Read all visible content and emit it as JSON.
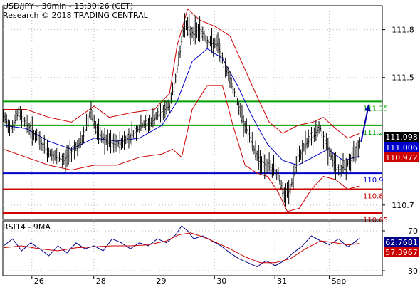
{
  "header": {
    "line1": "USD/JPY - 30min - 13:30:26 (CET)",
    "line2": "Research © 2018 TRADING CENTRAL"
  },
  "chart_data": [
    {
      "type": "ohlc",
      "instrument": "USD/JPY",
      "timeframe": "30min",
      "ylim": [
        110.61,
        111.95
      ],
      "price_ticks": [
        110.7,
        111.5,
        111.8
      ],
      "x_ticks": [
        "26",
        "28",
        "29",
        "30",
        "31",
        "Sep"
      ],
      "levels": [
        {
          "label": "111.35",
          "value": 111.35,
          "color": "#00a000",
          "role": "resistance"
        },
        {
          "label": "111.2",
          "value": 111.2,
          "color": "#00a000",
          "role": "resistance"
        },
        {
          "label": "110.9",
          "value": 110.9,
          "color": "#0000cc",
          "role": "pivot"
        },
        {
          "label": "110.8",
          "value": 110.8,
          "color": "#cc0000",
          "role": "support"
        },
        {
          "label": "110.65",
          "value": 110.65,
          "color": "#cc0000",
          "role": "support"
        }
      ],
      "price_boxes": [
        {
          "label": "111.098",
          "value": 111.098,
          "bg": "#000000",
          "fg": "#ffffff"
        },
        {
          "label": "111.006",
          "value": 111.006,
          "bg": "#0000cc",
          "fg": "#ffffff"
        },
        {
          "label": "110.972",
          "value": 110.972,
          "bg": "#cc0000",
          "fg": "#ffffff"
        }
      ],
      "close_path": [
        [
          0,
          111.25
        ],
        [
          5,
          111.18
        ],
        [
          10,
          111.28
        ],
        [
          16,
          111.2
        ],
        [
          22,
          111.12
        ],
        [
          28,
          111.05
        ],
        [
          34,
          111.0
        ],
        [
          40,
          110.98
        ],
        [
          46,
          111.05
        ],
        [
          52,
          111.1
        ],
        [
          58,
          111.3
        ],
        [
          62,
          111.15
        ],
        [
          68,
          111.1
        ],
        [
          74,
          111.08
        ],
        [
          80,
          111.1
        ],
        [
          86,
          111.15
        ],
        [
          92,
          111.2
        ],
        [
          98,
          111.22
        ],
        [
          104,
          111.28
        ],
        [
          110,
          111.32
        ],
        [
          116,
          111.6
        ],
        [
          120,
          111.85
        ],
        [
          124,
          111.78
        ],
        [
          130,
          111.8
        ],
        [
          136,
          111.72
        ],
        [
          142,
          111.7
        ],
        [
          148,
          111.55
        ],
        [
          154,
          111.38
        ],
        [
          158,
          111.25
        ],
        [
          162,
          111.15
        ],
        [
          166,
          111.05
        ],
        [
          170,
          110.98
        ],
        [
          174,
          110.95
        ],
        [
          178,
          110.93
        ],
        [
          182,
          110.9
        ],
        [
          186,
          110.75
        ],
        [
          190,
          110.8
        ],
        [
          194,
          110.95
        ],
        [
          198,
          111.05
        ],
        [
          202,
          111.1
        ],
        [
          206,
          111.15
        ],
        [
          210,
          111.18
        ],
        [
          214,
          111.08
        ],
        [
          218,
          110.98
        ],
        [
          222,
          110.92
        ],
        [
          226,
          110.94
        ],
        [
          230,
          110.98
        ],
        [
          234,
          111.05
        ],
        [
          236,
          111.098
        ]
      ],
      "sma_path": [
        [
          0,
          111.2
        ],
        [
          15,
          111.18
        ],
        [
          30,
          111.1
        ],
        [
          45,
          111.05
        ],
        [
          60,
          111.12
        ],
        [
          75,
          111.1
        ],
        [
          90,
          111.12
        ],
        [
          105,
          111.2
        ],
        [
          115,
          111.35
        ],
        [
          125,
          111.6
        ],
        [
          135,
          111.68
        ],
        [
          145,
          111.62
        ],
        [
          155,
          111.45
        ],
        [
          165,
          111.25
        ],
        [
          175,
          111.08
        ],
        [
          185,
          110.98
        ],
        [
          195,
          110.95
        ],
        [
          205,
          111.0
        ],
        [
          215,
          111.05
        ],
        [
          225,
          110.98
        ],
        [
          236,
          111.006
        ]
      ],
      "bb_upper_path": [
        [
          0,
          111.3
        ],
        [
          15,
          111.3
        ],
        [
          30,
          111.25
        ],
        [
          45,
          111.22
        ],
        [
          60,
          111.32
        ],
        [
          70,
          111.25
        ],
        [
          85,
          111.28
        ],
        [
          100,
          111.3
        ],
        [
          110,
          111.4
        ],
        [
          115,
          111.7
        ],
        [
          122,
          111.93
        ],
        [
          130,
          111.86
        ],
        [
          140,
          111.82
        ],
        [
          150,
          111.76
        ],
        [
          160,
          111.55
        ],
        [
          168,
          111.38
        ],
        [
          176,
          111.22
        ],
        [
          185,
          111.15
        ],
        [
          195,
          111.2
        ],
        [
          205,
          111.22
        ],
        [
          212,
          111.25
        ],
        [
          220,
          111.18
        ],
        [
          228,
          111.12
        ],
        [
          236,
          111.15
        ]
      ],
      "bb_lower_path": [
        [
          0,
          111.05
        ],
        [
          15,
          111.0
        ],
        [
          30,
          110.95
        ],
        [
          45,
          110.92
        ],
        [
          60,
          110.95
        ],
        [
          75,
          110.95
        ],
        [
          90,
          111.0
        ],
        [
          105,
          111.02
        ],
        [
          112,
          111.05
        ],
        [
          118,
          111.0
        ],
        [
          125,
          111.3
        ],
        [
          135,
          111.45
        ],
        [
          145,
          111.45
        ],
        [
          152,
          111.2
        ],
        [
          160,
          110.95
        ],
        [
          168,
          110.9
        ],
        [
          175,
          110.88
        ],
        [
          182,
          110.78
        ],
        [
          188,
          110.66
        ],
        [
          196,
          110.68
        ],
        [
          204,
          110.8
        ],
        [
          212,
          110.88
        ],
        [
          220,
          110.86
        ],
        [
          228,
          110.8
        ],
        [
          236,
          110.82
        ]
      ],
      "arrow_target": [
        242,
        111.33
      ]
    },
    {
      "type": "line",
      "title": "RSI14 - 9MA",
      "ylim": [
        25,
        80
      ],
      "ticks": [
        30,
        70
      ],
      "series": [
        {
          "color": "#000088",
          "values": [
            [
              0,
              55
            ],
            [
              6,
              62
            ],
            [
              12,
              50
            ],
            [
              18,
              58
            ],
            [
              24,
              52
            ],
            [
              30,
              45
            ],
            [
              36,
              55
            ],
            [
              42,
              48
            ],
            [
              48,
              58
            ],
            [
              54,
              52
            ],
            [
              60,
              55
            ],
            [
              66,
              50
            ],
            [
              72,
              62
            ],
            [
              78,
              58
            ],
            [
              84,
              52
            ],
            [
              90,
              58
            ],
            [
              96,
              55
            ],
            [
              102,
              62
            ],
            [
              108,
              58
            ],
            [
              114,
              66
            ],
            [
              118,
              75
            ],
            [
              122,
              70
            ],
            [
              126,
              62
            ],
            [
              132,
              65
            ],
            [
              138,
              60
            ],
            [
              144,
              55
            ],
            [
              150,
              48
            ],
            [
              156,
              42
            ],
            [
              162,
              38
            ],
            [
              168,
              34
            ],
            [
              174,
              40
            ],
            [
              180,
              35
            ],
            [
              186,
              40
            ],
            [
              192,
              48
            ],
            [
              198,
              55
            ],
            [
              204,
              65
            ],
            [
              210,
              60
            ],
            [
              216,
              56
            ],
            [
              222,
              62
            ],
            [
              228,
              54
            ],
            [
              232,
              58
            ],
            [
              236,
              62.7681
            ]
          ],
          "label": "62.7681"
        },
        {
          "color": "#cc0000",
          "values": [
            [
              0,
              53
            ],
            [
              12,
              55
            ],
            [
              24,
              52
            ],
            [
              36,
              50
            ],
            [
              48,
              53
            ],
            [
              60,
              54
            ],
            [
              72,
              55
            ],
            [
              84,
              55
            ],
            [
              96,
              56
            ],
            [
              108,
              60
            ],
            [
              116,
              66
            ],
            [
              124,
              68
            ],
            [
              132,
              64
            ],
            [
              140,
              59
            ],
            [
              150,
              52
            ],
            [
              160,
              44
            ],
            [
              170,
              38
            ],
            [
              180,
              38
            ],
            [
              190,
              42
            ],
            [
              200,
              52
            ],
            [
              210,
              60
            ],
            [
              220,
              58
            ],
            [
              228,
              56
            ],
            [
              236,
              57.3967
            ]
          ],
          "label": "57.3967"
        }
      ]
    }
  ]
}
